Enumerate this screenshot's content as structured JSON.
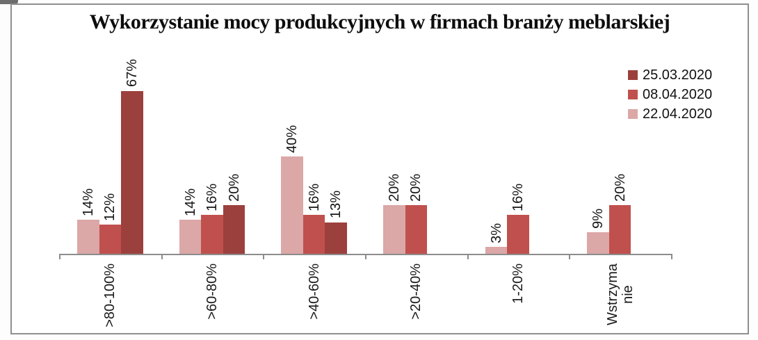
{
  "chart_data": {
    "type": "bar",
    "title": "Wykorzystanie mocy produkcyjnych w firmach branży meblarskiej",
    "categories": [
      ">80-100%",
      ">60-80%",
      ">40-60%",
      ">20-40%",
      "1-20%",
      "Wstrzyma\nnie"
    ],
    "series": [
      {
        "name": "22.04.2020",
        "color": "#DBA7A7",
        "values": [
          14,
          14,
          40,
          20,
          3,
          9
        ]
      },
      {
        "name": "08.04.2020",
        "color": "#C0504D",
        "values": [
          12,
          16,
          16,
          20,
          16,
          20
        ]
      },
      {
        "name": "25.03.2020",
        "color": "#9C403D",
        "values": [
          67,
          20,
          13,
          0,
          0,
          0
        ]
      }
    ],
    "legend": {
      "position": "top-right",
      "items": [
        {
          "label": "25.03.2020",
          "color": "#9C403D"
        },
        {
          "label": "08.04.2020",
          "color": "#C0504D"
        },
        {
          "label": "22.04.2020",
          "color": "#DBA7A7"
        }
      ]
    },
    "value_label_suffix": "%",
    "value_labels_rotated": true,
    "category_labels_rotated": true,
    "ylim": [
      0,
      100
    ],
    "grid": false,
    "xlabel": "",
    "ylabel": ""
  }
}
